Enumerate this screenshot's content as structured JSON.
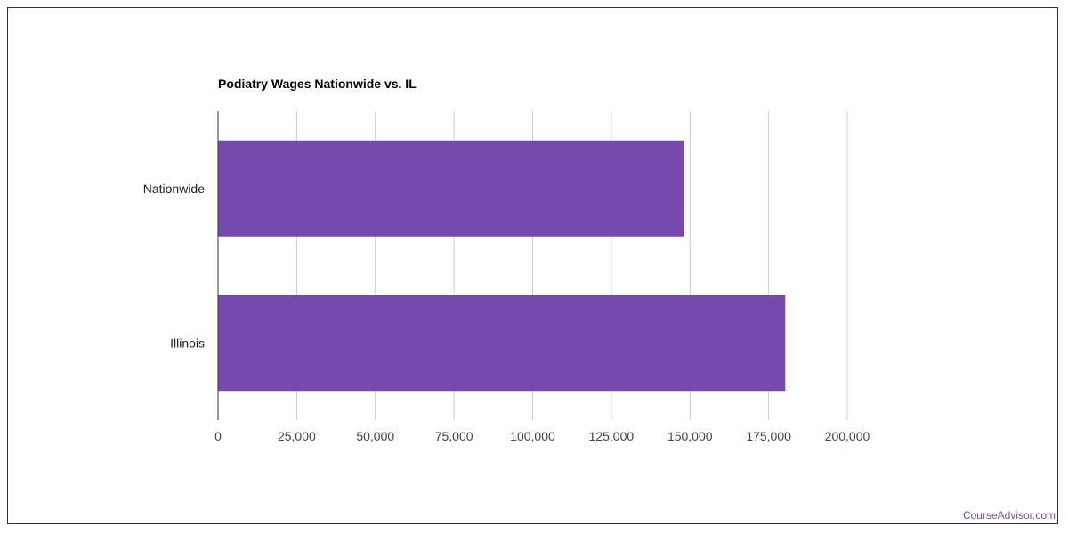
{
  "chart_data": {
    "type": "bar",
    "orientation": "horizontal",
    "title": "Podiatry Wages Nationwide vs. IL",
    "categories": [
      "Nationwide",
      "Illinois"
    ],
    "values": [
      148220,
      180290
    ],
    "xlim": [
      0,
      200000
    ],
    "xticks": [
      0,
      25000,
      50000,
      75000,
      100000,
      125000,
      150000,
      175000,
      200000
    ],
    "xtick_labels": [
      "0",
      "25,000",
      "50,000",
      "75,000",
      "100,000",
      "125,000",
      "150,000",
      "175,000",
      "200,000"
    ],
    "xlabel": "",
    "ylabel": "",
    "grid": true,
    "legend": "none",
    "bar_color": "#7549ae",
    "grid_color": "#cccccc",
    "axis_color": "#333333"
  },
  "footer": {
    "credit": "CourseAdvisor.com"
  }
}
